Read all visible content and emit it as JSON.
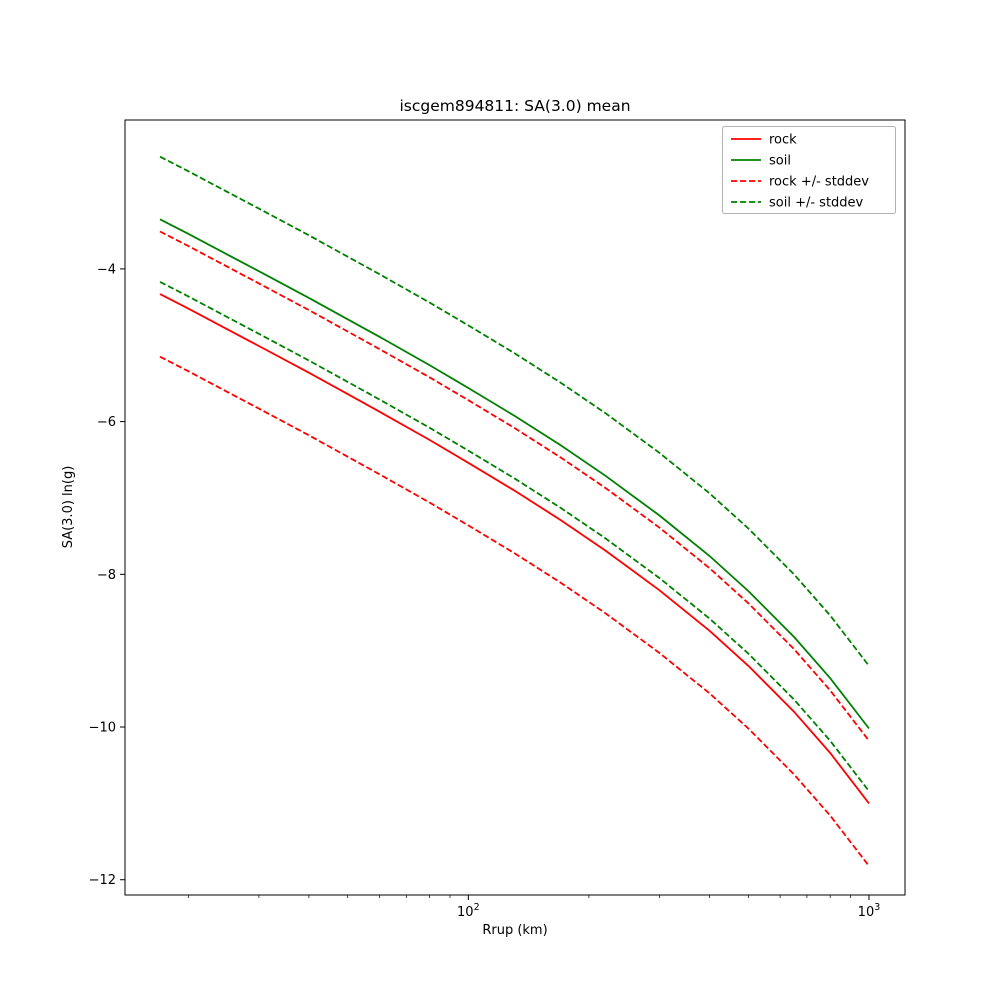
{
  "chart_data": {
    "type": "line",
    "title": "iscgem894811: SA(3.0) mean",
    "xlabel": "Rrup (km)",
    "ylabel": "SA(3.0) ln(g)",
    "x_scale": "log",
    "grid": false,
    "legend_position": "upper right",
    "xlim": [
      13.9,
      1230
    ],
    "ylim": [
      -12.2,
      -2.05
    ],
    "colors": {
      "rock": "#ff0000",
      "soil": "#008000"
    },
    "x": [
      17,
      20,
      25,
      30,
      40,
      50,
      60,
      80,
      100,
      130,
      170,
      220,
      300,
      400,
      500,
      650,
      800,
      1000
    ],
    "series": [
      {
        "id": "soil-upper-stddev",
        "name": "soil + stddev",
        "color": "#008000",
        "dash": true,
        "values": [
          -2.53,
          -2.72,
          -2.99,
          -3.21,
          -3.56,
          -3.84,
          -4.07,
          -4.44,
          -4.74,
          -5.1,
          -5.49,
          -5.89,
          -6.41,
          -6.94,
          -7.4,
          -8.0,
          -8.54,
          -9.2
        ]
      },
      {
        "id": "soil-mean",
        "name": "soil",
        "color": "#008000",
        "dash": false,
        "values": [
          -3.35,
          -3.54,
          -3.81,
          -4.03,
          -4.38,
          -4.66,
          -4.89,
          -5.26,
          -5.56,
          -5.92,
          -6.31,
          -6.71,
          -7.23,
          -7.76,
          -8.22,
          -8.82,
          -9.36,
          -10.02
        ]
      },
      {
        "id": "rock-upper-stddev",
        "name": "rock + stddev",
        "color": "#ff0000",
        "dash": true,
        "values": [
          -3.51,
          -3.7,
          -3.97,
          -4.19,
          -4.54,
          -4.82,
          -5.05,
          -5.42,
          -5.72,
          -6.08,
          -6.47,
          -6.87,
          -7.39,
          -7.92,
          -8.38,
          -8.98,
          -9.52,
          -10.18
        ]
      },
      {
        "id": "soil-lower-stddev",
        "name": "soil - stddev",
        "color": "#008000",
        "dash": true,
        "values": [
          -4.17,
          -4.36,
          -4.63,
          -4.85,
          -5.2,
          -5.48,
          -5.71,
          -6.08,
          -6.38,
          -6.74,
          -7.13,
          -7.53,
          -8.05,
          -8.58,
          -9.04,
          -9.64,
          -10.18,
          -10.84
        ]
      },
      {
        "id": "rock-mean",
        "name": "rock",
        "color": "#ff0000",
        "dash": false,
        "values": [
          -4.33,
          -4.52,
          -4.79,
          -5.01,
          -5.36,
          -5.64,
          -5.87,
          -6.24,
          -6.54,
          -6.9,
          -7.29,
          -7.69,
          -8.21,
          -8.74,
          -9.2,
          -9.8,
          -10.34,
          -11.0
        ]
      },
      {
        "id": "rock-lower-stddev",
        "name": "rock - stddev",
        "color": "#ff0000",
        "dash": true,
        "values": [
          -5.15,
          -5.34,
          -5.61,
          -5.83,
          -6.18,
          -6.46,
          -6.69,
          -7.06,
          -7.36,
          -7.72,
          -8.11,
          -8.51,
          -9.03,
          -9.56,
          -10.02,
          -10.62,
          -11.16,
          -11.82
        ]
      }
    ],
    "legend": [
      {
        "label": "rock",
        "color": "#ff0000",
        "dash": false
      },
      {
        "label": "soil",
        "color": "#008000",
        "dash": false
      },
      {
        "label": "rock +/- stddev",
        "color": "#ff0000",
        "dash": true
      },
      {
        "label": "soil +/- stddev",
        "color": "#008000",
        "dash": true
      }
    ],
    "x_ticks": [
      {
        "value": 100,
        "base": "10",
        "exp": "2"
      },
      {
        "value": 1000,
        "base": "10",
        "exp": "3"
      }
    ],
    "x_minor_ticks": [
      20,
      30,
      40,
      50,
      60,
      70,
      80,
      90,
      200,
      300,
      400,
      500,
      600,
      700,
      800,
      900
    ],
    "y_ticks": [
      {
        "value": -4,
        "label": "−4"
      },
      {
        "value": -6,
        "label": "−6"
      },
      {
        "value": -8,
        "label": "−8"
      },
      {
        "value": -10,
        "label": "−10"
      },
      {
        "value": -12,
        "label": "−12"
      }
    ]
  }
}
